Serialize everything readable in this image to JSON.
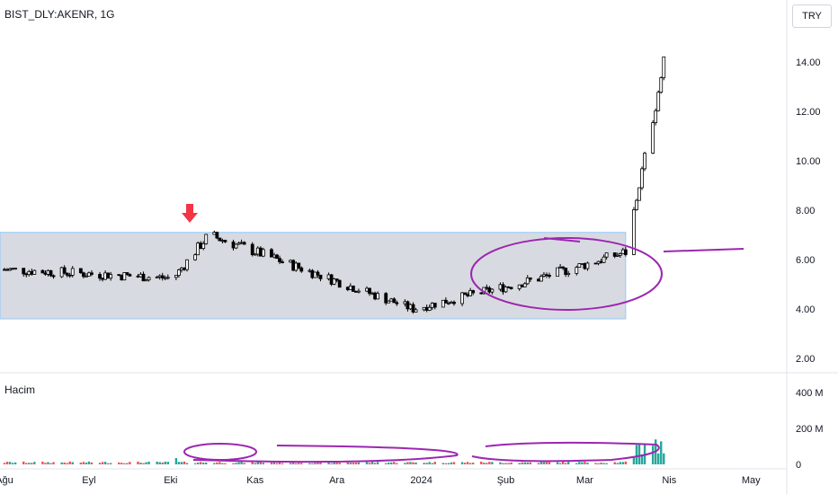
{
  "title": "BIST_DLY:AKENR, 1G",
  "currency": "TRY",
  "volume_label": "Hacim",
  "chart_data": [
    {
      "type": "candlestick",
      "title": "BIST_DLY:AKENR, 1G",
      "ylim": [
        1.5,
        15.5
      ],
      "y_ticks": [
        "2.00",
        "4.00",
        "6.00",
        "8.00",
        "10.00",
        "12.00",
        "14.00"
      ],
      "y_tick_values": [
        2,
        4,
        6,
        8,
        10,
        12,
        14
      ],
      "x_ticks": [
        "Ağu",
        "Eyl",
        "Eki",
        "Kas",
        "Ara",
        "2024",
        "Şub",
        "Mar",
        "Nis",
        "May"
      ],
      "x_tick_days": [
        0,
        31,
        61,
        92,
        122,
        153,
        184,
        213,
        244,
        274
      ],
      "start_close": 5.6,
      "series": [
        {
          "days": [
            0,
            62
          ],
          "closes": [
            5.6,
            5.25
          ]
        },
        {
          "days": [
            62,
            75
          ],
          "closes": [
            5.25,
            7.0
          ]
        },
        {
          "days": [
            75,
            150
          ],
          "closes": [
            7.0,
            4.0
          ]
        },
        {
          "days": [
            150,
            195
          ],
          "closes": [
            4.0,
            5.2
          ]
        },
        {
          "days": [
            195,
            228
          ],
          "closes": [
            5.2,
            6.3
          ]
        },
        {
          "days": [
            228,
            244
          ],
          "closes": [
            6.3,
            15.0
          ]
        }
      ],
      "annotations": {
        "range_box": {
          "y_low": 3.6,
          "y_high": 7.1,
          "day_start": 0,
          "day_end": 228
        }
      },
      "colors": {
        "up": "#ffffff",
        "down": "#000000",
        "box": "#d1d4dc",
        "circle": "#9c27b0",
        "arrow": "#f23645"
      }
    },
    {
      "type": "bar",
      "title": "Hacim",
      "ylim": [
        0,
        470
      ],
      "y_ticks": [
        "0",
        "200 M",
        "400 M"
      ],
      "y_tick_values": [
        0,
        200,
        400
      ],
      "colors": {
        "up": "#26a69a",
        "down": "#ef5350"
      }
    }
  ]
}
